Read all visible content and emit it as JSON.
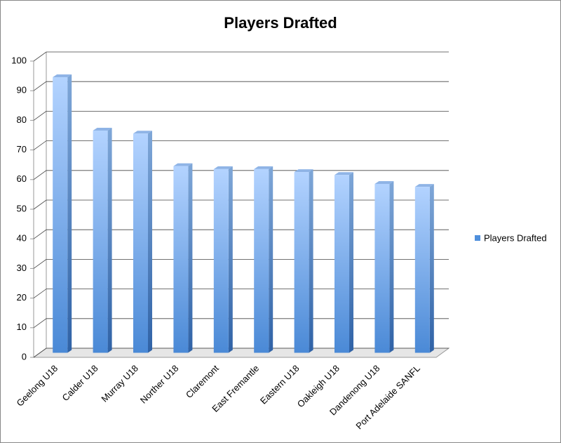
{
  "chart_data": {
    "type": "bar3d",
    "title": "Players Drafted",
    "categories": [
      "Geelong U18",
      "Calder U18",
      "Murray U18",
      "Norther U18",
      "Claremont",
      "East Fremantle",
      "Eastern U18",
      "Oakleigh U18",
      "Dandenong U18",
      "Port Adelaide SANFL"
    ],
    "series": [
      {
        "name": "Players Drafted",
        "color": "#4f8fdc",
        "values": [
          93,
          75,
          74,
          63,
          62,
          62,
          61,
          60,
          57,
          56
        ]
      }
    ],
    "ylim": [
      0,
      100
    ],
    "yticks": [
      0,
      10,
      20,
      30,
      40,
      50,
      60,
      70,
      80,
      90,
      100
    ],
    "grid": true,
    "legend": "right"
  }
}
